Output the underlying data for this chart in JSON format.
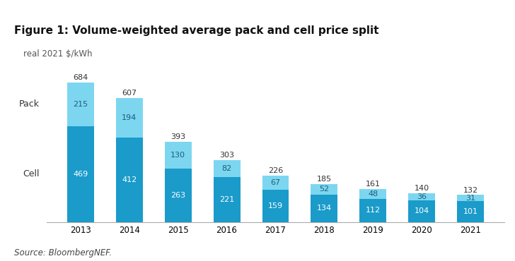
{
  "title": "Figure 1: Volume-weighted average pack and cell price split",
  "subtitle": "real 2021 $/kWh",
  "source": "Source: BloombergNEF.",
  "years": [
    "2013",
    "2014",
    "2015",
    "2016",
    "2017",
    "2018",
    "2019",
    "2020",
    "2021"
  ],
  "cell_values": [
    469,
    412,
    263,
    221,
    159,
    134,
    112,
    104,
    101
  ],
  "pack_values": [
    215,
    194,
    130,
    82,
    67,
    52,
    48,
    36,
    31
  ],
  "totals": [
    684,
    607,
    393,
    303,
    226,
    185,
    161,
    140,
    132
  ],
  "cell_color": "#1a9bca",
  "pack_color": "#7dd6f0",
  "background_color": "#ffffff",
  "title_fontsize": 11,
  "subtitle_fontsize": 8.5,
  "label_fontsize": 8,
  "tick_fontsize": 8.5,
  "source_fontsize": 8.5,
  "ylabel_pack": "Pack",
  "ylabel_cell": "Cell",
  "bar_width": 0.55,
  "ylim_max": 730
}
